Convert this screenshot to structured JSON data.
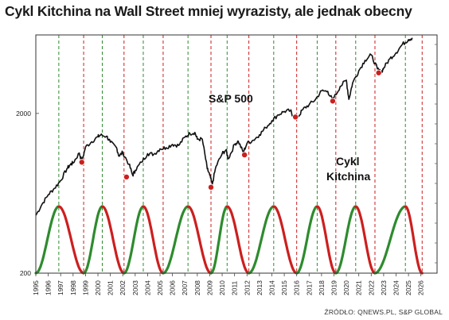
{
  "title": "Cykl Kitchina na Wall Street mniej wyrazisty, ale jednak obecny",
  "source": "ŹRÓDŁO: QNEWS.PL, S&P GLOBAL",
  "chart_data": {
    "type": "line",
    "y_scale": "log",
    "ylim": [
      200,
      6200
    ],
    "xlim": [
      1995,
      2027.3
    ],
    "y_ticks": [
      200,
      2000
    ],
    "x_ticks": [
      "1995",
      "1996",
      "1997",
      "1998",
      "1999",
      "2000",
      "2001",
      "2002",
      "2003",
      "2004",
      "2005",
      "2006",
      "2007",
      "2008",
      "2009",
      "2010",
      "2011",
      "2012",
      "2013",
      "2014",
      "2015",
      "2016",
      "2017",
      "2018",
      "2019",
      "2020",
      "2021",
      "2022",
      "2023",
      "2024",
      "2025",
      "2026"
    ],
    "grid": "vertical dashed cycle lines",
    "annotations": [
      "S&P 500",
      "Cykl",
      "Kitchina"
    ],
    "colors": {
      "sp500": "#111111",
      "cycle_up": "#2e8b2e",
      "cycle_down": "#cc1f1f",
      "trough_marker": "#cc1f1f",
      "frame": "#333333"
    },
    "series": [
      {
        "name": "S&P 500",
        "x": [
          1995.0,
          1995.5,
          1996.0,
          1996.5,
          1997.0,
          1997.5,
          1997.8,
          1998.0,
          1998.5,
          1998.7,
          1999.0,
          1999.5,
          2000.0,
          2000.2,
          2000.7,
          2001.0,
          2001.5,
          2001.7,
          2002.0,
          2002.5,
          2002.8,
          2003.0,
          2003.5,
          2004.0,
          2004.5,
          2005.0,
          2005.5,
          2006.0,
          2006.5,
          2007.0,
          2007.4,
          2007.8,
          2008.0,
          2008.4,
          2008.8,
          2009.0,
          2009.2,
          2009.5,
          2010.0,
          2010.3,
          2010.5,
          2011.0,
          2011.3,
          2011.7,
          2012.0,
          2012.5,
          2013.0,
          2013.5,
          2014.0,
          2014.5,
          2015.0,
          2015.5,
          2015.7,
          2016.1,
          2016.5,
          2017.0,
          2017.5,
          2018.0,
          2018.5,
          2018.9,
          2019.0,
          2019.5,
          2020.0,
          2020.2,
          2020.5,
          2021.0,
          2021.5,
          2022.0,
          2022.5,
          2022.8,
          2023.0,
          2023.5,
          2024.0,
          2024.5,
          2025.0,
          2025.3
        ],
        "y": [
          460,
          540,
          620,
          680,
          760,
          900,
          960,
          980,
          1130,
          1000,
          1230,
          1330,
          1430,
          1460,
          1440,
          1320,
          1220,
          1080,
          1140,
          960,
          820,
          880,
          990,
          1120,
          1110,
          1200,
          1220,
          1280,
          1260,
          1420,
          1500,
          1520,
          1380,
          1380,
          900,
          820,
          720,
          930,
          1120,
          1180,
          1040,
          1280,
          1340,
          1140,
          1300,
          1360,
          1470,
          1630,
          1800,
          1960,
          2060,
          2080,
          1930,
          1900,
          2120,
          2270,
          2440,
          2770,
          2750,
          2420,
          2500,
          2950,
          3230,
          2450,
          3100,
          3700,
          4300,
          4650,
          3800,
          3600,
          3850,
          4400,
          4800,
          5400,
          5800,
          5950
        ]
      }
    ],
    "cycle": {
      "name": "Cykl Kitchina",
      "troughs": [
        1995.0,
        1998.85,
        2002.1,
        2005.25,
        2009.1,
        2012.15,
        2016.0,
        2019.15,
        2022.3,
        2026.1
      ],
      "peaks": [
        1996.85,
        2000.35,
        2003.65,
        2007.25,
        2010.4,
        2014.15,
        2017.65,
        2020.75,
        2024.75
      ]
    },
    "trough_markers": [
      {
        "x": 1998.7,
        "y": 990
      },
      {
        "x": 2002.3,
        "y": 800
      },
      {
        "x": 2009.1,
        "y": 690
      },
      {
        "x": 2011.8,
        "y": 1100
      },
      {
        "x": 2015.9,
        "y": 1900
      },
      {
        "x": 2018.9,
        "y": 2390
      },
      {
        "x": 2022.6,
        "y": 3590
      }
    ]
  }
}
